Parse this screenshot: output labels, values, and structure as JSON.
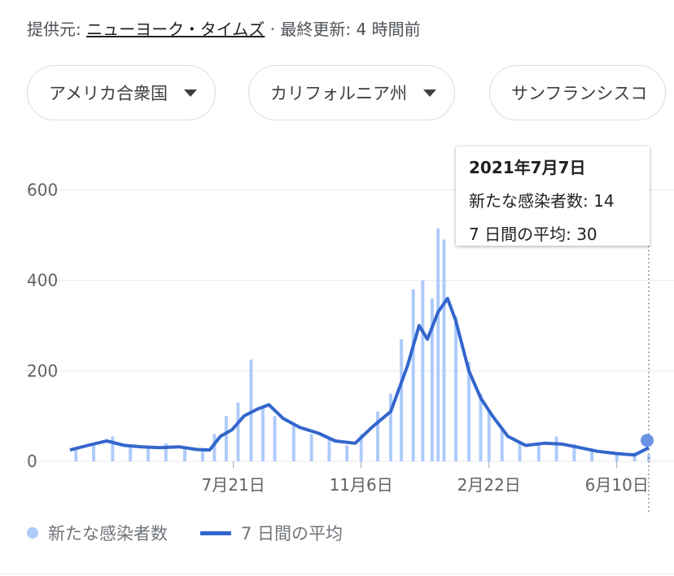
{
  "header": {
    "source_prefix": "提供元:",
    "source_name": "ニューヨーク・タイムズ",
    "updated": "· 最終更新: 4 時間前"
  },
  "filters": [
    {
      "label": "アメリカ合衆国"
    },
    {
      "label": "カリフォルニア州"
    },
    {
      "label": "サンフランシスコ"
    }
  ],
  "tooltip": {
    "date": "2021年7月7日",
    "new_cases_label": "新たな感染者数:",
    "new_cases_value": "14",
    "avg_label": "7 日間の平均:",
    "avg_value": "30"
  },
  "legend": {
    "cases": "新たな感染者数",
    "average": "7 日間の平均"
  },
  "colors": {
    "bars": "#aecbfa",
    "line": "#3366cc",
    "grid": "#e8eaed"
  },
  "chart_data": {
    "type": "bar",
    "title": "",
    "xlabel": "",
    "ylabel": "",
    "x_start": "2020-03-05",
    "x_end": "2021-07-07",
    "x_ticks": [
      {
        "date": "2020-07-21",
        "label": "7月21日"
      },
      {
        "date": "2020-11-06",
        "label": "11月6日"
      },
      {
        "date": "2021-02-22",
        "label": "2月22日"
      },
      {
        "date": "2021-06-10",
        "label": "6月10日"
      }
    ],
    "y_ticks": [
      0,
      200,
      400,
      600
    ],
    "ylim": [
      0,
      660
    ],
    "series": [
      {
        "name": "新たな感染者数",
        "kind": "bar",
        "points": [
          [
            "2020-03-10",
            25
          ],
          [
            "2020-03-25",
            40
          ],
          [
            "2020-04-10",
            55
          ],
          [
            "2020-04-25",
            35
          ],
          [
            "2020-05-10",
            30
          ],
          [
            "2020-05-25",
            40
          ],
          [
            "2020-06-10",
            30
          ],
          [
            "2020-06-25",
            28
          ],
          [
            "2020-07-05",
            60
          ],
          [
            "2020-07-15",
            100
          ],
          [
            "2020-07-25",
            130
          ],
          [
            "2020-08-05",
            225
          ],
          [
            "2020-08-15",
            120
          ],
          [
            "2020-08-25",
            100
          ],
          [
            "2020-09-10",
            80
          ],
          [
            "2020-09-25",
            60
          ],
          [
            "2020-10-10",
            50
          ],
          [
            "2020-10-25",
            35
          ],
          [
            "2020-11-06",
            60
          ],
          [
            "2020-11-20",
            110
          ],
          [
            "2020-12-01",
            150
          ],
          [
            "2020-12-10",
            270
          ],
          [
            "2020-12-20",
            380
          ],
          [
            "2020-12-28",
            400
          ],
          [
            "2021-01-05",
            360
          ],
          [
            "2021-01-10",
            515
          ],
          [
            "2021-01-15",
            490
          ],
          [
            "2021-01-25",
            320
          ],
          [
            "2021-02-05",
            220
          ],
          [
            "2021-02-15",
            150
          ],
          [
            "2021-02-22",
            110
          ],
          [
            "2021-03-05",
            70
          ],
          [
            "2021-03-20",
            45
          ],
          [
            "2021-04-05",
            40
          ],
          [
            "2021-04-20",
            55
          ],
          [
            "2021-05-05",
            38
          ],
          [
            "2021-05-20",
            25
          ],
          [
            "2021-06-10",
            18
          ],
          [
            "2021-06-25",
            20
          ],
          [
            "2021-07-07",
            14
          ]
        ]
      },
      {
        "name": "7 日間の平均",
        "kind": "line",
        "points": [
          [
            "2020-03-05",
            25
          ],
          [
            "2020-03-20",
            35
          ],
          [
            "2020-04-05",
            45
          ],
          [
            "2020-04-20",
            35
          ],
          [
            "2020-05-05",
            32
          ],
          [
            "2020-05-20",
            30
          ],
          [
            "2020-06-05",
            32
          ],
          [
            "2020-06-20",
            26
          ],
          [
            "2020-07-01",
            25
          ],
          [
            "2020-07-10",
            55
          ],
          [
            "2020-07-20",
            70
          ],
          [
            "2020-07-30",
            100
          ],
          [
            "2020-08-10",
            115
          ],
          [
            "2020-08-20",
            125
          ],
          [
            "2020-09-01",
            95
          ],
          [
            "2020-09-15",
            75
          ],
          [
            "2020-10-01",
            62
          ],
          [
            "2020-10-15",
            45
          ],
          [
            "2020-11-01",
            40
          ],
          [
            "2020-11-15",
            75
          ],
          [
            "2020-12-01",
            110
          ],
          [
            "2020-12-15",
            210
          ],
          [
            "2020-12-25",
            300
          ],
          [
            "2021-01-01",
            270
          ],
          [
            "2021-01-10",
            330
          ],
          [
            "2021-01-18",
            360
          ],
          [
            "2021-01-25",
            310
          ],
          [
            "2021-02-05",
            200
          ],
          [
            "2021-02-15",
            140
          ],
          [
            "2021-02-25",
            100
          ],
          [
            "2021-03-10",
            55
          ],
          [
            "2021-03-25",
            35
          ],
          [
            "2021-04-10",
            40
          ],
          [
            "2021-04-25",
            38
          ],
          [
            "2021-05-10",
            30
          ],
          [
            "2021-05-25",
            22
          ],
          [
            "2021-06-10",
            17
          ],
          [
            "2021-06-25",
            14
          ],
          [
            "2021-07-07",
            30
          ]
        ]
      }
    ],
    "highlight_date": "2021-07-07"
  }
}
